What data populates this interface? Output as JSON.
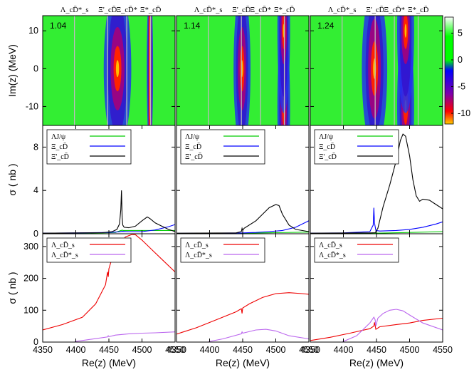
{
  "chart_data": {
    "type": "heatmap+line",
    "columns": [
      {
        "label": "1.04"
      },
      {
        "label": "1.14"
      },
      {
        "label": "1.24"
      }
    ],
    "thresholds": [
      {
        "text": "Λ_cD̄*_s",
        "x": 4398
      },
      {
        "text": "Ξ'_cD̄",
        "x": 4448
      },
      {
        "text": "Ξ_cD̄*",
        "x": 4477
      },
      {
        "text": "Ξ*_cD̄",
        "x": 4513
      }
    ],
    "x_axis": {
      "label": "Re(z) (MeV)",
      "range": [
        4350,
        4550
      ],
      "ticks": [
        4350,
        4400,
        4450,
        4500,
        4550
      ],
      "tick_labels": [
        "4350",
        "4400",
        "4450",
        "4500",
        "4550"
      ]
    },
    "heatmap": {
      "ylabel": "Im(z) (MeV)",
      "ylim": [
        -15,
        14
      ],
      "yticks": [
        10,
        0,
        -10
      ],
      "colorbar": {
        "range": [
          -12,
          8
        ],
        "ticks": [
          5,
          0,
          -5,
          -10
        ]
      },
      "features": [
        [
          {
            "x": 4463,
            "y": 0,
            "value": -9,
            "w": 13,
            "h": 5
          },
          {
            "x": 4512,
            "y": 0,
            "value": -3,
            "w": 3,
            "h": 30
          }
        ],
        [
          {
            "x": 4449,
            "y": 0,
            "value": -9,
            "w": 8,
            "h": 5
          },
          {
            "x": 4512,
            "y": -10,
            "value": -9,
            "w": 6,
            "h": 4
          },
          {
            "x": 4512,
            "y": 10,
            "value": -9,
            "w": 6,
            "h": 4
          }
        ],
        [
          {
            "x": 4447,
            "y": 0,
            "value": -10,
            "w": 12,
            "h": 6
          },
          {
            "x": 4494,
            "y": -10,
            "value": -9,
            "w": 8,
            "h": 4
          },
          {
            "x": 4494,
            "y": 10,
            "value": -9,
            "w": 8,
            "h": 4
          }
        ]
      ]
    },
    "middle": {
      "ylabel": "σ ( nb )",
      "ylim": [
        0,
        10
      ],
      "yticks": [
        0,
        4,
        8
      ],
      "legend": [
        "ΛJ/ψ",
        "Ξ_cD̄",
        "Ξ'_cD̄"
      ],
      "series_colors": [
        "#00cc00",
        "#0000ff",
        "#000000"
      ],
      "panels": [
        [
          {
            "x": [
              4350,
              4400,
              4440,
              4460,
              4468,
              4469,
              4470,
              4471,
              4473,
              4490,
              4500,
              4510,
              4520,
              4530,
              4540,
              4550
            ],
            "y": [
              0.02,
              0.05,
              0.08,
              0.12,
              0.3,
              0.3,
              0.35,
              0.3,
              0.3,
              0.3,
              0.3,
              0.3,
              0.3,
              0.3,
              0.3,
              0.3
            ]
          },
          {
            "x": [
              4350,
              4400,
              4450,
              4465,
              4470,
              4480,
              4500,
              4520,
              4540,
              4550
            ],
            "y": [
              0.05,
              0.08,
              0.12,
              0.18,
              0.22,
              0.2,
              0.2,
              0.35,
              0.65,
              0.85
            ]
          },
          {
            "x": [
              4350,
              4440,
              4455,
              4462,
              4466,
              4468,
              4469,
              4470,
              4471,
              4473,
              4480,
              4490,
              4500,
              4508,
              4512,
              4520,
              4530,
              4540,
              4550
            ],
            "y": [
              0.05,
              0.1,
              0.2,
              0.4,
              0.9,
              2.2,
              4.0,
              1.5,
              0.8,
              0.6,
              0.55,
              0.7,
              1.2,
              1.55,
              1.4,
              1.0,
              0.7,
              0.4,
              0.2
            ]
          }
        ],
        [
          {
            "x": [
              4350,
              4400,
              4450,
              4500,
              4550
            ],
            "y": [
              0.02,
              0.03,
              0.05,
              0.1,
              0.15
            ]
          },
          {
            "x": [
              4350,
              4400,
              4450,
              4470,
              4490,
              4510,
              4530,
              4550
            ],
            "y": [
              0.04,
              0.05,
              0.08,
              0.12,
              0.2,
              0.3,
              0.6,
              1.2
            ]
          },
          {
            "x": [
              4350,
              4440,
              4448,
              4449,
              4450,
              4452,
              4470,
              4480,
              4490,
              4500,
              4505,
              4510,
              4520,
              4530,
              4550
            ],
            "y": [
              0.05,
              0.08,
              0.2,
              0.5,
              0.3,
              0.5,
              1.2,
              1.8,
              2.4,
              2.7,
              2.6,
              1.8,
              0.8,
              0.4,
              0.2
            ]
          }
        ],
        [
          {
            "x": [
              4350,
              4400,
              4450,
              4500,
              4550
            ],
            "y": [
              0.02,
              0.03,
              0.05,
              0.12,
              0.2
            ]
          },
          {
            "x": [
              4350,
              4400,
              4440,
              4445,
              4446,
              4447,
              4449,
              4455,
              4480,
              4500,
              4520,
              4540,
              4550
            ],
            "y": [
              0.05,
              0.08,
              0.2,
              0.8,
              2.4,
              1.0,
              0.3,
              0.25,
              0.3,
              0.4,
              0.6,
              0.9,
              1.1
            ]
          },
          {
            "x": [
              4350,
              4440,
              4448,
              4449,
              4452,
              4460,
              4470,
              4480,
              4486,
              4490,
              4494,
              4500,
              4505,
              4510,
              4515,
              4520,
              4530,
              4540,
              4550
            ],
            "y": [
              0.05,
              0.08,
              0.1,
              0.2,
              0.5,
              2.5,
              4.5,
              6.8,
              8.6,
              9.2,
              9.0,
              7.2,
              5.0,
              3.5,
              3.0,
              3.2,
              3.1,
              2.7,
              2.3
            ]
          }
        ]
      ]
    },
    "bottom": {
      "ylabel": "σ ( nb )",
      "ylim": [
        0,
        340
      ],
      "yticks": [
        0,
        100,
        200,
        300
      ],
      "legend": [
        "Λ_cD̄_s",
        "Λ_cD̄*_s"
      ],
      "series_colors": [
        "#ee0000",
        "#bb66ee"
      ],
      "panels": [
        [
          {
            "x": [
              4350,
              4380,
              4410,
              4430,
              4445,
              4448,
              4449,
              4450,
              4455,
              4465,
              4475,
              4485,
              4490,
              4500,
              4515,
              4530,
              4550
            ],
            "y": [
              38,
              55,
              78,
              120,
              180,
              220,
              205,
              230,
              265,
              305,
              330,
              338,
              337,
              320,
              290,
              260,
              220
            ]
          },
          {
            "x": [
              4350,
              4398,
              4400,
              4420,
              4448,
              4449,
              4450,
              4460,
              4480,
              4500,
              4520,
              4550
            ],
            "y": [
              0,
              0,
              2,
              8,
              16,
              20,
              17,
              22,
              26,
              28,
              29,
              32
            ]
          }
        ],
        [
          {
            "x": [
              4350,
              4380,
              4410,
              4440,
              4448,
              4449,
              4450,
              4460,
              4480,
              4500,
              4520,
              4540,
              4550
            ],
            "y": [
              25,
              45,
              70,
              95,
              105,
              90,
              107,
              120,
              140,
              152,
              155,
              152,
              150
            ]
          },
          {
            "x": [
              4350,
              4398,
              4400,
              4420,
              4448,
              4449,
              4450,
              4470,
              4485,
              4500,
              4520,
              4550
            ],
            "y": [
              0,
              0,
              2,
              10,
              26,
              32,
              28,
              38,
              40,
              35,
              20,
              10
            ]
          }
        ],
        [
          {
            "x": [
              4350,
              4380,
              4410,
              4440,
              4446,
              4447,
              4449,
              4455,
              4480,
              4500,
              4520,
              4550
            ],
            "y": [
              5,
              15,
              28,
              42,
              50,
              62,
              40,
              48,
              55,
              60,
              68,
              75
            ]
          },
          {
            "x": [
              4350,
              4398,
              4400,
              4420,
              4440,
              4446,
              4448,
              4449,
              4452,
              4460,
              4470,
              4480,
              4490,
              4500,
              4520,
              4550
            ],
            "y": [
              0,
              0,
              2,
              20,
              60,
              78,
              70,
              50,
              75,
              90,
              100,
              103,
              98,
              85,
              60,
              38
            ]
          }
        ]
      ]
    }
  }
}
